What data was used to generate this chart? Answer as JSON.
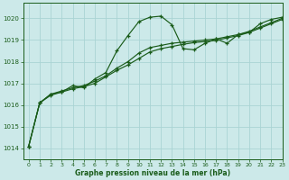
{
  "title": "Graphe pression niveau de la mer (hPa)",
  "background_color": "#cce9e9",
  "grid_color": "#aad4d4",
  "line_color": "#1a5c1a",
  "xlim": [
    -0.5,
    23
  ],
  "ylim": [
    1013.5,
    1020.7
  ],
  "yticks": [
    1014,
    1015,
    1016,
    1017,
    1018,
    1019,
    1020
  ],
  "xticks": [
    0,
    1,
    2,
    3,
    4,
    5,
    6,
    7,
    8,
    9,
    10,
    11,
    12,
    13,
    14,
    15,
    16,
    17,
    18,
    19,
    20,
    21,
    22,
    23
  ],
  "series1_x": [
    0,
    1,
    2,
    3,
    4,
    5,
    6,
    7,
    8,
    9,
    10,
    11,
    12,
    13,
    14,
    15,
    16,
    17,
    18,
    19,
    20,
    21,
    22,
    23
  ],
  "series1_y": [
    1014.1,
    1016.1,
    1016.5,
    1016.6,
    1016.9,
    1016.8,
    1017.2,
    1017.5,
    1018.5,
    1019.2,
    1019.85,
    1020.05,
    1020.1,
    1019.7,
    1018.6,
    1018.55,
    1018.85,
    1019.05,
    1018.85,
    1019.25,
    1019.35,
    1019.75,
    1019.95,
    1020.05
  ],
  "series2_x": [
    0,
    1,
    2,
    3,
    4,
    5,
    6,
    7,
    8,
    9,
    10,
    11,
    12,
    13,
    14,
    15,
    16,
    17,
    18,
    19,
    20,
    21,
    22,
    23
  ],
  "series2_y": [
    1014.1,
    1016.1,
    1016.5,
    1016.65,
    1016.8,
    1016.9,
    1017.1,
    1017.35,
    1017.7,
    1018.0,
    1018.4,
    1018.65,
    1018.75,
    1018.85,
    1018.9,
    1018.95,
    1019.0,
    1019.05,
    1019.15,
    1019.25,
    1019.4,
    1019.6,
    1019.8,
    1020.0
  ],
  "series3_x": [
    0,
    1,
    2,
    3,
    4,
    5,
    6,
    7,
    8,
    9,
    10,
    11,
    12,
    13,
    14,
    15,
    16,
    17,
    18,
    19,
    20,
    21,
    22,
    23
  ],
  "series3_y": [
    1014.1,
    1016.1,
    1016.45,
    1016.6,
    1016.75,
    1016.85,
    1017.0,
    1017.3,
    1017.6,
    1017.85,
    1018.15,
    1018.45,
    1018.6,
    1018.7,
    1018.8,
    1018.88,
    1018.93,
    1018.98,
    1019.1,
    1019.2,
    1019.35,
    1019.55,
    1019.75,
    1019.95
  ]
}
